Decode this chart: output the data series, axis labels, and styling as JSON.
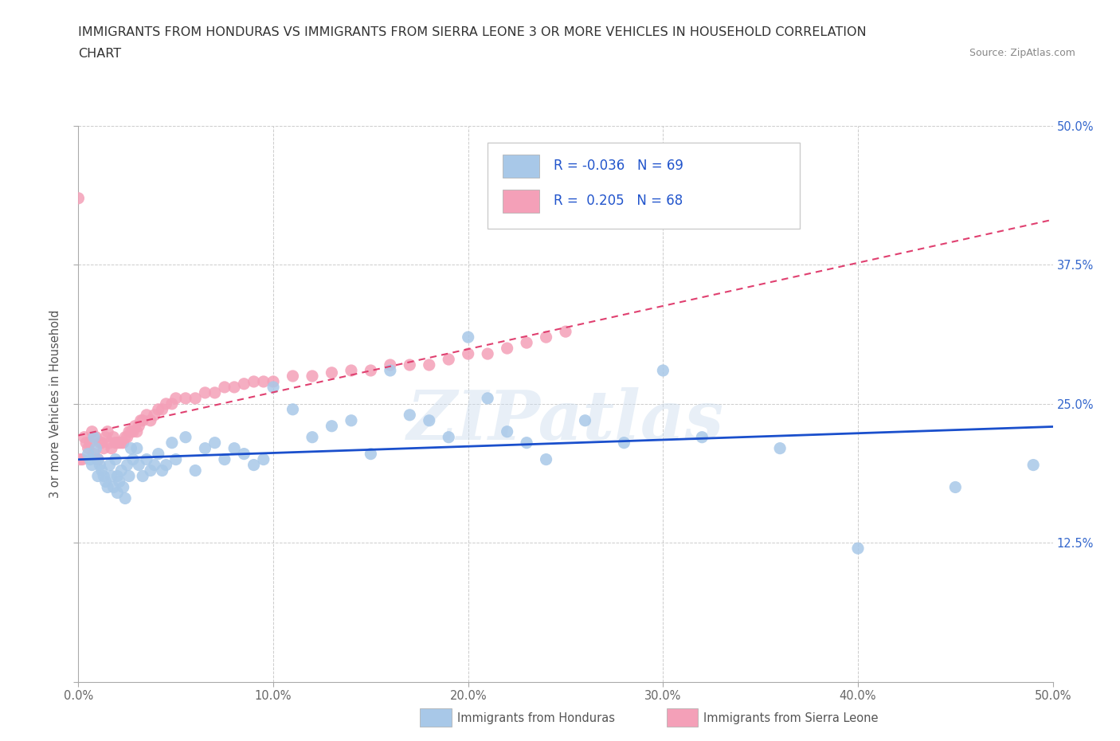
{
  "title_line1": "IMMIGRANTS FROM HONDURAS VS IMMIGRANTS FROM SIERRA LEONE 3 OR MORE VEHICLES IN HOUSEHOLD CORRELATION",
  "title_line2": "CHART",
  "source_text": "Source: ZipAtlas.com",
  "ylabel": "3 or more Vehicles in Household",
  "xlim": [
    0,
    0.5
  ],
  "ylim": [
    0,
    0.5
  ],
  "legend_R_honduras": "-0.036",
  "legend_N_honduras": "69",
  "legend_R_sierra": "0.205",
  "legend_N_sierra": "68",
  "watermark": "ZIPatlas",
  "color_honduras": "#a8c8e8",
  "color_sierra_leone": "#f4a0b8",
  "trendline_honduras_color": "#1a4fcc",
  "trendline_sierra_leone_color": "#e04070",
  "honduras_x": [
    0.005,
    0.006,
    0.007,
    0.008,
    0.009,
    0.01,
    0.01,
    0.011,
    0.012,
    0.013,
    0.014,
    0.015,
    0.016,
    0.017,
    0.018,
    0.019,
    0.02,
    0.02,
    0.021,
    0.022,
    0.023,
    0.024,
    0.025,
    0.026,
    0.027,
    0.028,
    0.03,
    0.031,
    0.033,
    0.035,
    0.037,
    0.039,
    0.041,
    0.043,
    0.045,
    0.048,
    0.05,
    0.055,
    0.06,
    0.065,
    0.07,
    0.075,
    0.08,
    0.085,
    0.09,
    0.095,
    0.1,
    0.11,
    0.12,
    0.13,
    0.14,
    0.15,
    0.16,
    0.17,
    0.18,
    0.19,
    0.2,
    0.21,
    0.22,
    0.23,
    0.24,
    0.26,
    0.28,
    0.3,
    0.32,
    0.36,
    0.4,
    0.45,
    0.49
  ],
  "honduras_y": [
    0.205,
    0.2,
    0.195,
    0.22,
    0.21,
    0.2,
    0.185,
    0.195,
    0.19,
    0.185,
    0.18,
    0.175,
    0.195,
    0.185,
    0.175,
    0.2,
    0.185,
    0.17,
    0.18,
    0.19,
    0.175,
    0.165,
    0.195,
    0.185,
    0.21,
    0.2,
    0.21,
    0.195,
    0.185,
    0.2,
    0.19,
    0.195,
    0.205,
    0.19,
    0.195,
    0.215,
    0.2,
    0.22,
    0.19,
    0.21,
    0.215,
    0.2,
    0.21,
    0.205,
    0.195,
    0.2,
    0.265,
    0.245,
    0.22,
    0.23,
    0.235,
    0.205,
    0.28,
    0.24,
    0.235,
    0.22,
    0.31,
    0.255,
    0.225,
    0.215,
    0.2,
    0.235,
    0.215,
    0.28,
    0.22,
    0.21,
    0.12,
    0.175,
    0.195
  ],
  "sierra_leone_x": [
    0.0,
    0.001,
    0.002,
    0.003,
    0.004,
    0.005,
    0.006,
    0.007,
    0.008,
    0.009,
    0.01,
    0.01,
    0.011,
    0.012,
    0.013,
    0.014,
    0.015,
    0.016,
    0.017,
    0.018,
    0.019,
    0.02,
    0.021,
    0.022,
    0.023,
    0.024,
    0.025,
    0.026,
    0.027,
    0.028,
    0.029,
    0.03,
    0.031,
    0.032,
    0.033,
    0.035,
    0.037,
    0.039,
    0.041,
    0.043,
    0.045,
    0.048,
    0.05,
    0.055,
    0.06,
    0.065,
    0.07,
    0.075,
    0.08,
    0.085,
    0.09,
    0.095,
    0.1,
    0.11,
    0.12,
    0.13,
    0.14,
    0.15,
    0.16,
    0.17,
    0.18,
    0.19,
    0.2,
    0.21,
    0.22,
    0.23,
    0.24,
    0.25
  ],
  "sierra_leone_y": [
    0.435,
    0.2,
    0.2,
    0.22,
    0.215,
    0.21,
    0.215,
    0.225,
    0.205,
    0.22,
    0.2,
    0.2,
    0.215,
    0.215,
    0.21,
    0.22,
    0.225,
    0.215,
    0.21,
    0.22,
    0.215,
    0.215,
    0.215,
    0.215,
    0.215,
    0.22,
    0.22,
    0.225,
    0.225,
    0.225,
    0.23,
    0.225,
    0.23,
    0.235,
    0.235,
    0.24,
    0.235,
    0.24,
    0.245,
    0.245,
    0.25,
    0.25,
    0.255,
    0.255,
    0.255,
    0.26,
    0.26,
    0.265,
    0.265,
    0.268,
    0.27,
    0.27,
    0.27,
    0.275,
    0.275,
    0.278,
    0.28,
    0.28,
    0.285,
    0.285,
    0.285,
    0.29,
    0.295,
    0.295,
    0.3,
    0.305,
    0.31,
    0.315
  ]
}
